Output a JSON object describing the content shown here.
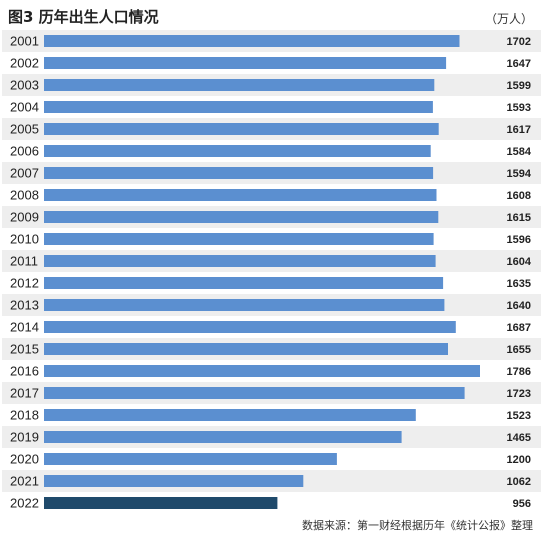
{
  "header": {
    "title": "图3 历年出生人口情况",
    "unit": "（万人）"
  },
  "footer": {
    "source": "数据来源：第一财经根据历年《统计公报》整理"
  },
  "colors": {
    "bar": "#5b8fd0",
    "bar_highlight": "#1f4a6b",
    "row_alt": "#eeeeee",
    "row_base": "#ffffff",
    "text": "#222222"
  },
  "chart_data": {
    "type": "bar",
    "orientation": "horizontal",
    "title": "图3 历年出生人口情况",
    "unit": "（万人）",
    "categories": [
      "2001",
      "2002",
      "2003",
      "2004",
      "2005",
      "2006",
      "2007",
      "2008",
      "2009",
      "2010",
      "2011",
      "2012",
      "2013",
      "2014",
      "2015",
      "2016",
      "2017",
      "2018",
      "2019",
      "2020",
      "2021",
      "2022"
    ],
    "values": [
      1702,
      1647,
      1599,
      1593,
      1617,
      1584,
      1594,
      1608,
      1615,
      1596,
      1604,
      1635,
      1640,
      1687,
      1655,
      1786,
      1723,
      1523,
      1465,
      1200,
      1062,
      956
    ],
    "highlight_category": "2022",
    "xlim": [
      0,
      1786
    ],
    "grid": false,
    "legend": "none"
  }
}
